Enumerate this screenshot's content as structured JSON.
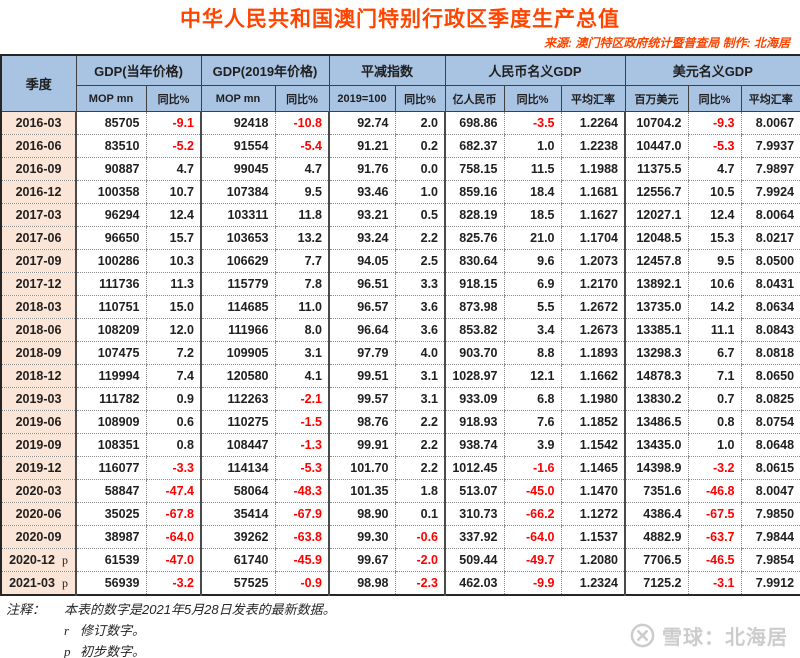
{
  "title": "中华人民共和国澳门特别行政区季度生产总值",
  "source_line": "来源: 澳门特区政府统计暨普查局  制作: 北海居",
  "colors": {
    "title_red": "#ff4500",
    "header_blue": "#a9c3e3",
    "quarter_peach": "#fbe5d6",
    "negative_red": "#ff0000"
  },
  "table": {
    "quarter_header": "季度",
    "groups": [
      {
        "label": "GDP(当年价格)",
        "sub": [
          "MOP mn",
          "同比%"
        ]
      },
      {
        "label": "GDP(2019年价格)",
        "sub": [
          "MOP mn",
          "同比%"
        ]
      },
      {
        "label": "平减指数",
        "sub": [
          "2019=100",
          "同比%"
        ]
      },
      {
        "label": "人民币名义GDP",
        "sub": [
          "亿人民币",
          "同比%",
          "平均汇率"
        ]
      },
      {
        "label": "美元名义GDP",
        "sub": [
          "百万美元",
          "同比%",
          "平均汇率"
        ]
      }
    ],
    "rows": [
      {
        "quarter": "2016-03",
        "note": "",
        "values": [
          "85705",
          "-9.1",
          "92418",
          "-10.8",
          "92.74",
          "2.0",
          "698.86",
          "-3.5",
          "1.2264",
          "10704.2",
          "-9.3",
          "8.0067"
        ]
      },
      {
        "quarter": "2016-06",
        "note": "",
        "values": [
          "83510",
          "-5.2",
          "91554",
          "-5.4",
          "91.21",
          "0.2",
          "682.37",
          "1.0",
          "1.2238",
          "10447.0",
          "-5.3",
          "7.9937"
        ]
      },
      {
        "quarter": "2016-09",
        "note": "",
        "values": [
          "90887",
          "4.7",
          "99045",
          "4.7",
          "91.76",
          "0.0",
          "758.15",
          "11.5",
          "1.1988",
          "11375.5",
          "4.7",
          "7.9897"
        ]
      },
      {
        "quarter": "2016-12",
        "note": "",
        "values": [
          "100358",
          "10.7",
          "107384",
          "9.5",
          "93.46",
          "1.0",
          "859.16",
          "18.4",
          "1.1681",
          "12556.7",
          "10.5",
          "7.9924"
        ]
      },
      {
        "quarter": "2017-03",
        "note": "",
        "values": [
          "96294",
          "12.4",
          "103311",
          "11.8",
          "93.21",
          "0.5",
          "828.19",
          "18.5",
          "1.1627",
          "12027.1",
          "12.4",
          "8.0064"
        ]
      },
      {
        "quarter": "2017-06",
        "note": "",
        "values": [
          "96650",
          "15.7",
          "103653",
          "13.2",
          "93.24",
          "2.2",
          "825.76",
          "21.0",
          "1.1704",
          "12048.5",
          "15.3",
          "8.0217"
        ]
      },
      {
        "quarter": "2017-09",
        "note": "",
        "values": [
          "100286",
          "10.3",
          "106629",
          "7.7",
          "94.05",
          "2.5",
          "830.64",
          "9.6",
          "1.2073",
          "12457.8",
          "9.5",
          "8.0500"
        ]
      },
      {
        "quarter": "2017-12",
        "note": "",
        "values": [
          "111736",
          "11.3",
          "115779",
          "7.8",
          "96.51",
          "3.3",
          "918.15",
          "6.9",
          "1.2170",
          "13892.1",
          "10.6",
          "8.0431"
        ]
      },
      {
        "quarter": "2018-03",
        "note": "",
        "values": [
          "110751",
          "15.0",
          "114685",
          "11.0",
          "96.57",
          "3.6",
          "873.98",
          "5.5",
          "1.2672",
          "13735.0",
          "14.2",
          "8.0634"
        ]
      },
      {
        "quarter": "2018-06",
        "note": "",
        "values": [
          "108209",
          "12.0",
          "111966",
          "8.0",
          "96.64",
          "3.6",
          "853.82",
          "3.4",
          "1.2673",
          "13385.1",
          "11.1",
          "8.0843"
        ]
      },
      {
        "quarter": "2018-09",
        "note": "",
        "values": [
          "107475",
          "7.2",
          "109905",
          "3.1",
          "97.79",
          "4.0",
          "903.70",
          "8.8",
          "1.1893",
          "13298.3",
          "6.7",
          "8.0818"
        ]
      },
      {
        "quarter": "2018-12",
        "note": "",
        "values": [
          "119994",
          "7.4",
          "120580",
          "4.1",
          "99.51",
          "3.1",
          "1028.97",
          "12.1",
          "1.1662",
          "14878.3",
          "7.1",
          "8.0650"
        ]
      },
      {
        "quarter": "2019-03",
        "note": "",
        "values": [
          "111782",
          "0.9",
          "112263",
          "-2.1",
          "99.57",
          "3.1",
          "933.09",
          "6.8",
          "1.1980",
          "13830.2",
          "0.7",
          "8.0825"
        ]
      },
      {
        "quarter": "2019-06",
        "note": "",
        "values": [
          "108909",
          "0.6",
          "110275",
          "-1.5",
          "98.76",
          "2.2",
          "918.93",
          "7.6",
          "1.1852",
          "13486.5",
          "0.8",
          "8.0754"
        ]
      },
      {
        "quarter": "2019-09",
        "note": "",
        "values": [
          "108351",
          "0.8",
          "108447",
          "-1.3",
          "99.91",
          "2.2",
          "938.74",
          "3.9",
          "1.1542",
          "13435.0",
          "1.0",
          "8.0648"
        ]
      },
      {
        "quarter": "2019-12",
        "note": "",
        "values": [
          "116077",
          "-3.3",
          "114134",
          "-5.3",
          "101.70",
          "2.2",
          "1012.45",
          "-1.6",
          "1.1465",
          "14398.9",
          "-3.2",
          "8.0615"
        ]
      },
      {
        "quarter": "2020-03",
        "note": "",
        "values": [
          "58847",
          "-47.4",
          "58064",
          "-48.3",
          "101.35",
          "1.8",
          "513.07",
          "-45.0",
          "1.1470",
          "7351.6",
          "-46.8",
          "8.0047"
        ]
      },
      {
        "quarter": "2020-06",
        "note": "",
        "values": [
          "35025",
          "-67.8",
          "35414",
          "-67.9",
          "98.90",
          "0.1",
          "310.73",
          "-66.2",
          "1.1272",
          "4386.4",
          "-67.5",
          "7.9850"
        ]
      },
      {
        "quarter": "2020-09",
        "note": "",
        "values": [
          "38987",
          "-64.0",
          "39262",
          "-63.8",
          "99.30",
          "-0.6",
          "337.92",
          "-64.0",
          "1.1537",
          "4882.9",
          "-63.7",
          "7.9844"
        ]
      },
      {
        "quarter": "2020-12",
        "note": "p",
        "values": [
          "61539",
          "-47.0",
          "61740",
          "-45.9",
          "99.67",
          "-2.0",
          "509.44",
          "-49.7",
          "1.2080",
          "7706.5",
          "-46.5",
          "7.9854"
        ]
      },
      {
        "quarter": "2021-03",
        "note": "p",
        "values": [
          "56939",
          "-3.2",
          "57525",
          "-0.9",
          "98.98",
          "-2.3",
          "462.03",
          "-9.9",
          "1.2324",
          "7125.2",
          "-3.1",
          "7.9912"
        ]
      }
    ]
  },
  "notes": {
    "label": "注释：",
    "main": "本表的数字是2021年5月28日发表的最新数据。",
    "r_symbol": "r",
    "r_text": "修订数字。",
    "p_symbol": "p",
    "p_text": "初步数字。"
  },
  "watermark": {
    "text": "雪球：北海居"
  }
}
